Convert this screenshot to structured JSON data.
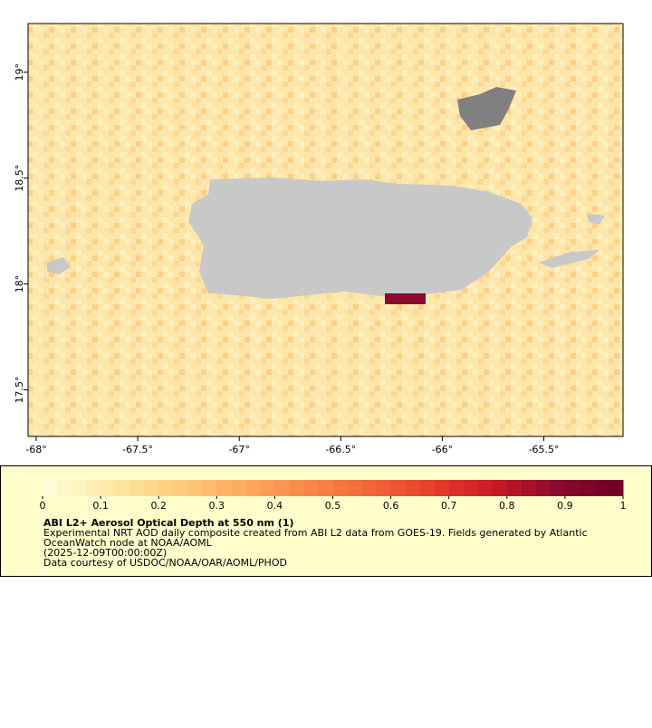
{
  "map": {
    "xlim": [
      -68.04,
      -65.11
    ],
    "ylim": [
      17.28,
      19.23
    ],
    "xticks": [
      {
        "value": -68,
        "label": "-68°"
      },
      {
        "value": -67.5,
        "label": "-67.5°"
      },
      {
        "value": -67,
        "label": "-67°"
      },
      {
        "value": -66.5,
        "label": "-66.5°"
      },
      {
        "value": -66,
        "label": "-66°"
      },
      {
        "value": -65.5,
        "label": "-65.5°"
      }
    ],
    "yticks": [
      {
        "value": 17.5,
        "label": "17.5°"
      },
      {
        "value": 18,
        "label": "18°"
      },
      {
        "value": 18.5,
        "label": "18.5°"
      },
      {
        "value": 19,
        "label": "19°"
      }
    ]
  },
  "colorbar": {
    "lim": [
      0,
      1
    ],
    "ticks": [
      0,
      0.1,
      0.2,
      0.3,
      0.4,
      0.5,
      0.6,
      0.7,
      0.8,
      0.9,
      1
    ],
    "palette": [
      "#ffffe0",
      "#fee9a8",
      "#fdd080",
      "#fdae61",
      "#f98c4a",
      "#f26a3a",
      "#e8402c",
      "#c81a26",
      "#8b0a2e",
      "#6b0026"
    ]
  },
  "legend": {
    "title": "ABI L2+ Aerosol Optical Depth at 550 nm (1)",
    "lines": [
      "Experimental NRT AOD daily composite created from ABI L2 data from GOES-19. Fields generated by Atlantic",
      "OceanWatch node at NOAA/AOML",
      "(2025-12-09T00:00:00Z)",
      "Data courtesy of USDOC/NOAA/OAR/AOML/PHOD"
    ]
  }
}
